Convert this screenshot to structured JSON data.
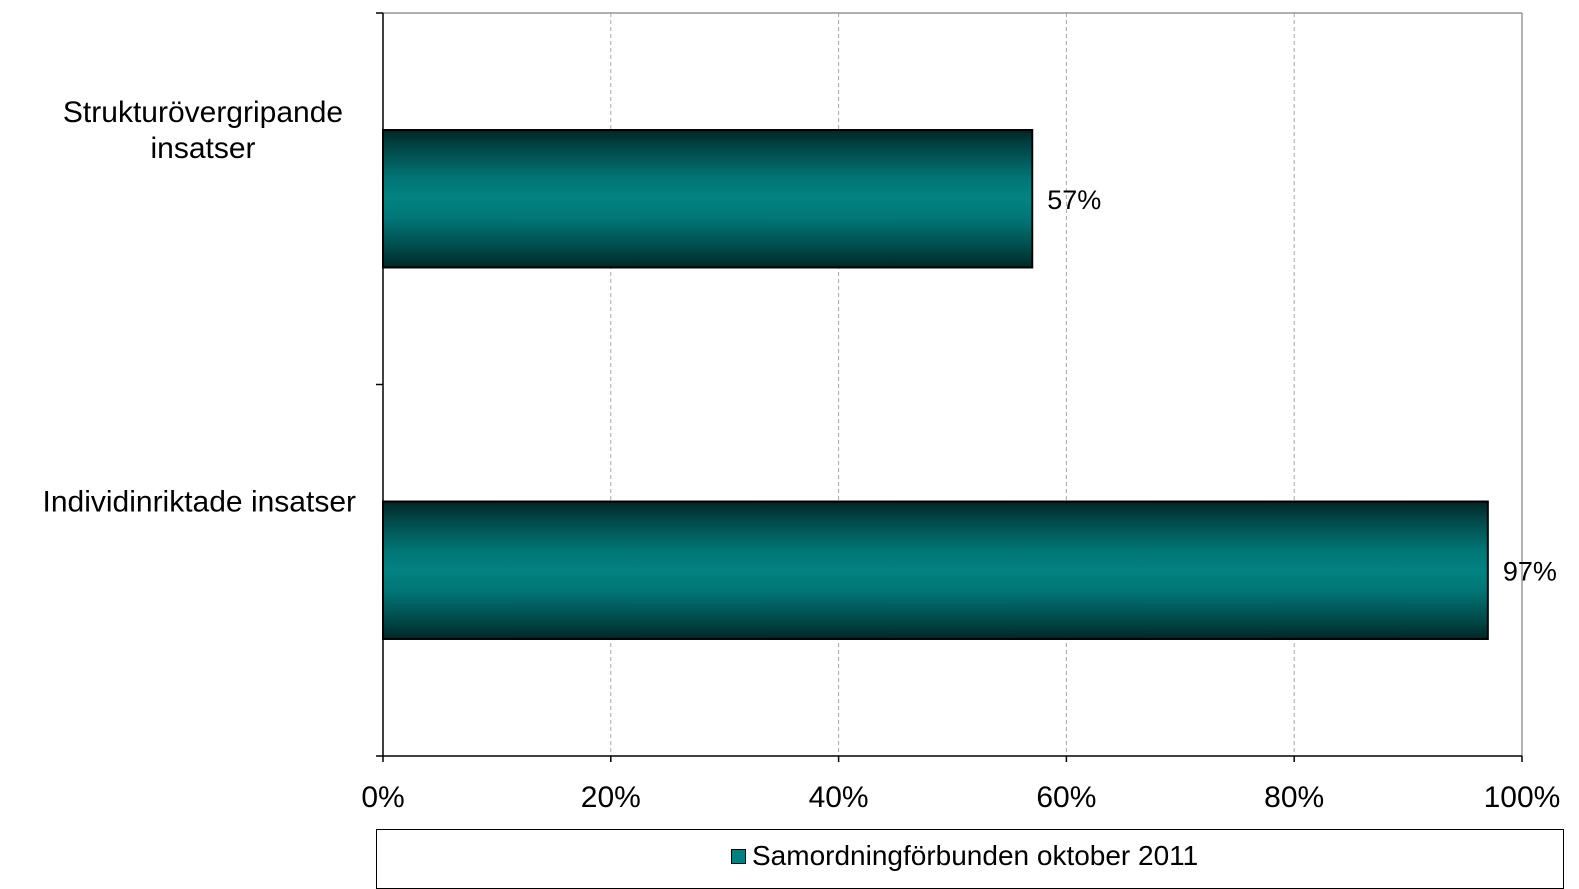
{
  "chart_data": {
    "type": "bar",
    "orientation": "horizontal",
    "categories": [
      "Strukturövergripande insatser",
      "Individinriktade insatser"
    ],
    "category_lines": [
      [
        "Strukturövergripande",
        "insatser"
      ],
      [
        "Individinriktade insatser"
      ]
    ],
    "series": [
      {
        "name": "Samordningförbunden oktober 2011",
        "values": [
          57,
          97
        ],
        "color": "#008080"
      }
    ],
    "data_labels": [
      "57%",
      "97%"
    ],
    "xlim": [
      0,
      100
    ],
    "xticks": [
      0,
      20,
      40,
      60,
      80,
      100
    ],
    "xtick_labels": [
      "0%",
      "20%",
      "40%",
      "60%",
      "80%",
      "100%"
    ],
    "grid": "vertical dashed",
    "legend": {
      "position": "bottom",
      "label": "Samordningförbunden oktober 2011"
    }
  }
}
